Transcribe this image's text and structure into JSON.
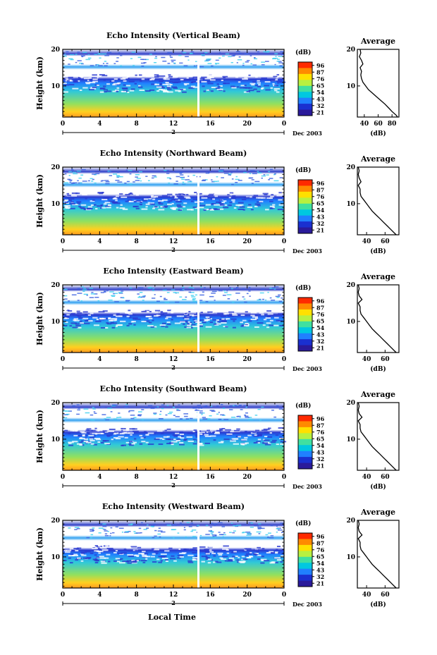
{
  "figure": {
    "date_label": "Dec 2003",
    "day_label": "2",
    "xlabel": "Local Time",
    "ylabel": "Height (km)",
    "colorbar_unit": "(dB)",
    "colorbar_ticks": [
      "96",
      "87",
      "76",
      "65",
      "54",
      "43",
      "32",
      "21"
    ],
    "colorbar_colors": [
      "#ff2a00",
      "#ff8a00",
      "#ffe000",
      "#b8f040",
      "#40e0a0",
      "#00c8e0",
      "#2080ff",
      "#1a30d0",
      "#2a1a9a"
    ],
    "avg_title": "Average",
    "avg_xlabel": "(dB)",
    "height_ticks": [
      "20",
      "10"
    ],
    "time_ticks": [
      "0",
      "4",
      "8",
      "12",
      "16",
      "20",
      "0"
    ]
  },
  "chart_data": [
    {
      "type": "heatmap",
      "title": "Echo Intensity (Vertical Beam)",
      "x_range": [
        0,
        24
      ],
      "y_range": [
        1.5,
        20
      ],
      "avg_x_ticks": [
        "40",
        "60",
        "80"
      ],
      "avg_x_range": [
        30,
        90
      ],
      "avg_profile_h": [
        1.5,
        2,
        3,
        4,
        5,
        6,
        7,
        8,
        9,
        10,
        11,
        12,
        13,
        14,
        15,
        16,
        17,
        18,
        19,
        20
      ],
      "avg_profile_db": [
        88,
        86,
        80,
        75,
        70,
        64,
        58,
        52,
        46,
        42,
        38,
        36,
        35,
        36,
        34,
        38,
        36,
        33,
        35,
        34
      ]
    },
    {
      "type": "heatmap",
      "title": "Echo Intensity (Northward Beam)",
      "x_range": [
        0,
        24
      ],
      "y_range": [
        1.5,
        20
      ],
      "avg_x_ticks": [
        "40",
        "60"
      ],
      "avg_x_range": [
        30,
        75
      ],
      "avg_profile_h": [
        1.5,
        2,
        3,
        4,
        5,
        6,
        7,
        8,
        9,
        10,
        11,
        12,
        13,
        14,
        15,
        16,
        17,
        18,
        19,
        20
      ],
      "avg_profile_db": [
        72,
        70,
        66,
        62,
        58,
        54,
        50,
        46,
        43,
        40,
        37,
        34,
        33,
        33,
        31,
        34,
        32,
        31,
        32,
        31
      ]
    },
    {
      "type": "heatmap",
      "title": "Echo Intensity (Eastward Beam)",
      "x_range": [
        0,
        24
      ],
      "y_range": [
        1.5,
        20
      ],
      "avg_x_ticks": [
        "40",
        "60"
      ],
      "avg_x_range": [
        30,
        75
      ],
      "avg_profile_h": [
        1.5,
        2,
        3,
        4,
        5,
        6,
        7,
        8,
        9,
        10,
        11,
        12,
        13,
        14,
        15,
        16,
        17,
        18,
        19,
        20
      ],
      "avg_profile_db": [
        72,
        70,
        66,
        62,
        58,
        54,
        50,
        46,
        43,
        40,
        37,
        34,
        33,
        33,
        31,
        35,
        32,
        31,
        32,
        31
      ]
    },
    {
      "type": "heatmap",
      "title": "Echo Intensity (Southward Beam)",
      "x_range": [
        0,
        24
      ],
      "y_range": [
        1.5,
        20
      ],
      "avg_x_ticks": [
        "40",
        "60"
      ],
      "avg_x_range": [
        30,
        75
      ],
      "avg_profile_h": [
        1.5,
        2,
        3,
        4,
        5,
        6,
        7,
        8,
        9,
        10,
        11,
        12,
        13,
        14,
        15,
        16,
        17,
        18,
        19,
        20
      ],
      "avg_profile_db": [
        72,
        70,
        66,
        62,
        58,
        54,
        50,
        46,
        43,
        40,
        37,
        34,
        33,
        33,
        31,
        35,
        32,
        31,
        32,
        31
      ]
    },
    {
      "type": "heatmap",
      "title": "Echo Intensity (Westward Beam)",
      "x_range": [
        0,
        24
      ],
      "y_range": [
        1.5,
        20
      ],
      "avg_x_ticks": [
        "40",
        "60"
      ],
      "avg_x_range": [
        30,
        75
      ],
      "avg_profile_h": [
        1.5,
        2,
        3,
        4,
        5,
        6,
        7,
        8,
        9,
        10,
        11,
        12,
        13,
        14,
        15,
        16,
        17,
        18,
        19,
        20
      ],
      "avg_profile_db": [
        72,
        70,
        66,
        62,
        58,
        54,
        50,
        46,
        43,
        40,
        37,
        34,
        33,
        33,
        31,
        35,
        32,
        31,
        32,
        31
      ]
    }
  ]
}
